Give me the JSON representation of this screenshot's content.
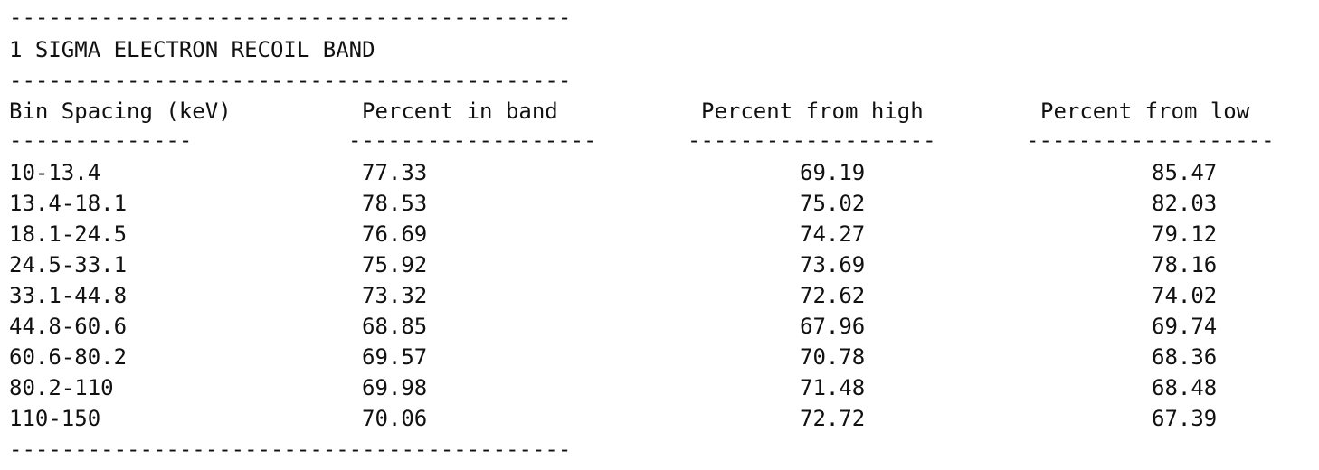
{
  "title": "1 SIGMA ELECTRON RECOIL BAND",
  "rule_long": "-------------------------------------------",
  "headers": {
    "bin": "Bin Spacing (keV)",
    "in_band": "Percent in band",
    "from_high": "Percent from high",
    "from_low": "Percent from low"
  },
  "header_rules": {
    "bin": "--------------",
    "in_band": "-------------------",
    "from_high": "-------------------",
    "from_low": "-------------------"
  },
  "rows": [
    {
      "bin": "10-13.4",
      "in_band": "77.33",
      "from_high": "69.19",
      "from_low": "85.47"
    },
    {
      "bin": "13.4-18.1",
      "in_band": "78.53",
      "from_high": "75.02",
      "from_low": "82.03"
    },
    {
      "bin": "18.1-24.5",
      "in_band": "76.69",
      "from_high": "74.27",
      "from_low": "79.12"
    },
    {
      "bin": "24.5-33.1",
      "in_band": "75.92",
      "from_high": "73.69",
      "from_low": "78.16"
    },
    {
      "bin": "33.1-44.8",
      "in_band": "73.32",
      "from_high": "72.62",
      "from_low": "74.02"
    },
    {
      "bin": "44.8-60.6",
      "in_band": "68.85",
      "from_high": "67.96",
      "from_low": "69.74"
    },
    {
      "bin": "60.6-80.2",
      "in_band": "69.57",
      "from_high": "70.78",
      "from_low": "68.36"
    },
    {
      "bin": "80.2-110",
      "in_band": "69.98",
      "from_high": "71.48",
      "from_low": "68.48"
    },
    {
      "bin": "110-150",
      "in_band": "70.06",
      "from_high": "72.72",
      "from_low": "67.39"
    }
  ]
}
